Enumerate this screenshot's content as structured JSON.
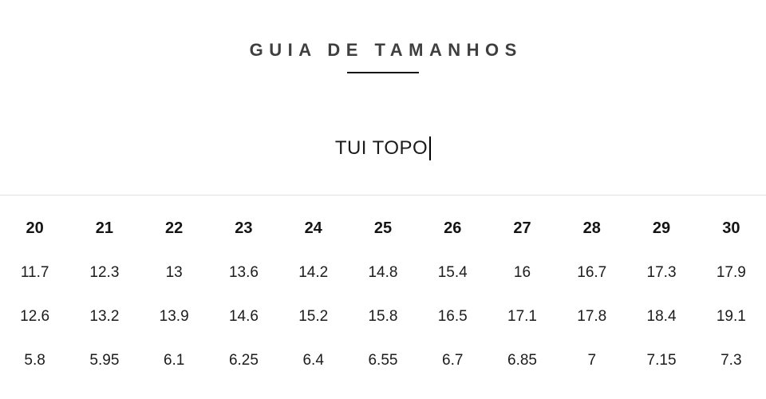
{
  "header": {
    "title": "GUIA DE TAMANHOS"
  },
  "product": {
    "name": "TUI TOPO"
  },
  "size_table": {
    "columns": [
      "20",
      "21",
      "22",
      "23",
      "24",
      "25",
      "26",
      "27",
      "28",
      "29",
      "30"
    ],
    "rows": [
      [
        "11.7",
        "12.3",
        "13",
        "13.6",
        "14.2",
        "14.8",
        "15.4",
        "16",
        "16.7",
        "17.3",
        "17.9"
      ],
      [
        "12.6",
        "13.2",
        "13.9",
        "14.6",
        "15.2",
        "15.8",
        "16.5",
        "17.1",
        "17.8",
        "18.4",
        "19.1"
      ],
      [
        "5.8",
        "5.95",
        "6.1",
        "6.25",
        "6.4",
        "6.55",
        "6.7",
        "6.85",
        "7",
        "7.15",
        "7.3"
      ]
    ]
  },
  "colors": {
    "title_text": "#3f3f3f",
    "body_text": "#1d1b1b",
    "underline": "#161616",
    "divider": "#e2e2e2",
    "background": "#ffffff"
  }
}
